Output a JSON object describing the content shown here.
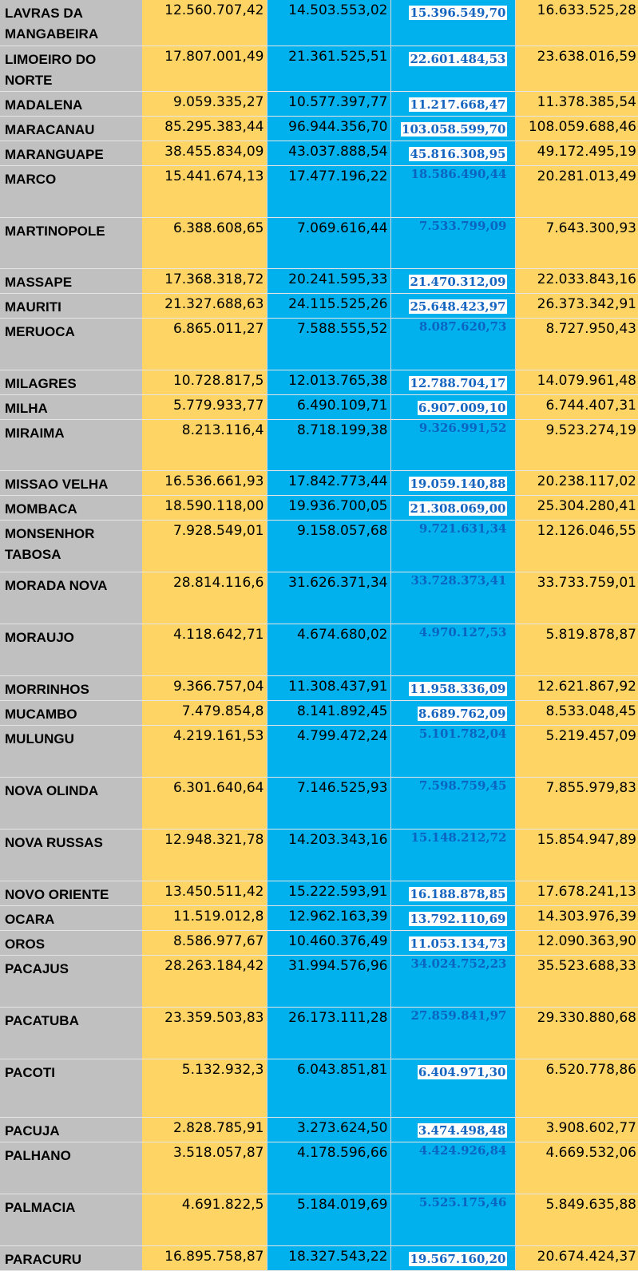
{
  "rows": [
    {
      "name": "LAVRAS DA MANGABEIRA",
      "c1": "12.560.707,42",
      "c2": "14.503.553,02",
      "c3": "15.396.549,70",
      "c4": "16.633.525,28",
      "c3_boxed": true,
      "h": 57
    },
    {
      "name": "LIMOEIRO DO NORTE",
      "c1": "17.807.001,49",
      "c2": "21.361.525,51",
      "c3": "22.601.484,53",
      "c4": "23.638.016,59",
      "c3_boxed": true,
      "h": 54
    },
    {
      "name": "MADALENA",
      "c1": "9.059.335,27",
      "c2": "10.577.397,77",
      "c3": "11.217.668,47",
      "c4": "11.378.385,54",
      "c3_boxed": true,
      "h": 29
    },
    {
      "name": "MARACANAU",
      "c1": "85.295.383,44",
      "c2": "96.944.356,70",
      "c3": "103.058.599,70",
      "c4": "108.059.688,46",
      "c3_boxed": true,
      "h": 29
    },
    {
      "name": "MARANGUAPE",
      "c1": "38.455.834,09",
      "c2": "43.037.888,54",
      "c3": "45.816.308,95",
      "c4": "49.172.495,19",
      "c3_boxed": true,
      "h": 29
    },
    {
      "name": "MARCO",
      "c1": "15.441.674,13",
      "c2": "17.477.196,22",
      "c3": "18.586.490,44",
      "c4": "20.281.013,49",
      "c3_boxed": false,
      "h": 65
    },
    {
      "name": "MARTINOPOLE",
      "c1": "6.388.608,65",
      "c2": "7.069.616,44",
      "c3": "7.533.799,09",
      "c4": "7.643.300,93",
      "c3_boxed": false,
      "h": 64
    },
    {
      "name": "MASSAPE",
      "c1": "17.368.318,72",
      "c2": "20.241.595,33",
      "c3": "21.470.312,09",
      "c4": "22.033.843,16",
      "c3_boxed": true,
      "h": 30
    },
    {
      "name": "MAURITI",
      "c1": "21.327.688,63",
      "c2": "24.115.525,26",
      "c3": "25.648.423,97",
      "c4": "26.373.342,91",
      "c3_boxed": true,
      "h": 29
    },
    {
      "name": "MERUOCA",
      "c1": "6.865.011,27",
      "c2": "7.588.555,52",
      "c3": "8.087.620,73",
      "c4": "8.727.950,43",
      "c3_boxed": false,
      "h": 65
    },
    {
      "name": "MILAGRES",
      "c1": "10.728.817,5",
      "c2": "12.013.765,38",
      "c3": "12.788.704,17",
      "c4": "14.079.961,48",
      "c3_boxed": true,
      "h": 29
    },
    {
      "name": "MILHA",
      "c1": "5.779.933,77",
      "c2": "6.490.109,71",
      "c3": "6.907.009,10",
      "c4": "6.744.407,31",
      "c3_boxed": true,
      "h": 29
    },
    {
      "name": "MIRAIMA",
      "c1": "8.213.116,4",
      "c2": "8.718.199,38",
      "c3": "9.326.991,52",
      "c4": "9.523.274,19",
      "c3_boxed": false,
      "h": 64
    },
    {
      "name": "MISSAO VELHA",
      "c1": "16.536.661,93",
      "c2": "17.842.773,44",
      "c3": "19.059.140,88",
      "c4": "20.238.117,02",
      "c3_boxed": true,
      "h": 29
    },
    {
      "name": "MOMBACA",
      "c1": "18.590.118,00",
      "c2": "19.936.700,05",
      "c3": "21.308.069,00",
      "c4": "25.304.280,41",
      "c3_boxed": true,
      "h": 29
    },
    {
      "name": "MONSENHOR TABOSA",
      "c1": "7.928.549,01",
      "c2": "9.158.057,68",
      "c3": "9.721.631,34",
      "c4": "12.126.046,55",
      "c3_boxed": false,
      "h": 65
    },
    {
      "name": "MORADA NOVA",
      "c1": "28.814.116,6",
      "c2": "31.626.371,34",
      "c3": "33.728.373,41",
      "c4": "33.733.759,01",
      "c3_boxed": false,
      "h": 65
    },
    {
      "name": "MORAUJO",
      "c1": "4.118.642,71",
      "c2": "4.674.680,02",
      "c3": "4.970.127,53",
      "c4": "5.819.878,87",
      "c3_boxed": false,
      "h": 65
    },
    {
      "name": "MORRINHOS",
      "c1": "9.366.757,04",
      "c2": "11.308.437,91",
      "c3": "11.958.336,09",
      "c4": "12.621.867,92",
      "c3_boxed": true,
      "h": 29
    },
    {
      "name": "MUCAMBO",
      "c1": "7.479.854,8",
      "c2": "8.141.892,45",
      "c3": "8.689.762,09",
      "c4": "8.533.048,45",
      "c3_boxed": true,
      "h": 29
    },
    {
      "name": "MULUNGU",
      "c1": "4.219.161,53",
      "c2": "4.799.472,24",
      "c3": "5.101.782,04",
      "c4": "5.219.457,09",
      "c3_boxed": false,
      "h": 65
    },
    {
      "name": "NOVA OLINDA",
      "c1": "6.301.640,64",
      "c2": "7.146.525,93",
      "c3": "7.598.759,45",
      "c4": "7.855.979,83",
      "c3_boxed": false,
      "h": 65
    },
    {
      "name": "NOVA RUSSAS",
      "c1": "12.948.321,78",
      "c2": "14.203.343,16",
      "c3": "15.148.212,72",
      "c4": "15.854.947,89",
      "c3_boxed": false,
      "h": 65
    },
    {
      "name": "NOVO ORIENTE",
      "c1": "13.450.511,42",
      "c2": "15.222.593,91",
      "c3": "16.188.878,85",
      "c4": "17.678.241,13",
      "c3_boxed": true,
      "h": 29
    },
    {
      "name": "OCARA",
      "c1": "11.519.012,8",
      "c2": "12.962.163,39",
      "c3": "13.792.110,69",
      "c4": "14.303.976,39",
      "c3_boxed": true,
      "h": 29
    },
    {
      "name": "OROS",
      "c1": "8.586.977,67",
      "c2": "10.460.376,49",
      "c3": "11.053.134,73",
      "c4": "12.090.363,90",
      "c3_boxed": true,
      "h": 29
    },
    {
      "name": "PACAJUS",
      "c1": "28.263.184,42",
      "c2": "31.994.576,96",
      "c3": "34.024.752,23",
      "c4": "35.523.688,33",
      "c3_boxed": false,
      "h": 65
    },
    {
      "name": "PACATUBA",
      "c1": "23.359.503,83",
      "c2": "26.173.111,28",
      "c3": "27.859.841,97",
      "c4": "29.330.880,68",
      "c3_boxed": false,
      "h": 65
    },
    {
      "name": "PACOTI",
      "c1": "5.132.932,3",
      "c2": "6.043.851,81",
      "c3": "6.404.971,30",
      "c4": "6.520.778,86",
      "c3_boxed": true,
      "h": 73
    },
    {
      "name": "PACUJA",
      "c1": "2.828.785,91",
      "c2": "3.273.624,50",
      "c3": "3.474.498,48",
      "c4": "3.908.602,77",
      "c3_boxed": true,
      "h": 29
    },
    {
      "name": "PALHANO",
      "c1": "3.518.057,87",
      "c2": "4.178.596,66",
      "c3": "4.424.926,84",
      "c4": "4.669.532,06",
      "c3_boxed": false,
      "h": 65
    },
    {
      "name": "PALMACIA",
      "c1": "4.691.822,5",
      "c2": "5.184.019,69",
      "c3": "5.525.175,46",
      "c4": "5.849.635,88",
      "c3_boxed": false,
      "h": 65
    },
    {
      "name": "PARACURU",
      "c1": "16.895.758,87",
      "c2": "18.327.543,22",
      "c3": "19.567.160,20",
      "c4": "20.674.424,37",
      "c3_boxed": true,
      "h": 30
    }
  ]
}
